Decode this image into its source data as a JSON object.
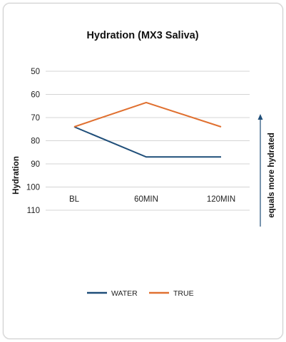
{
  "chart_data": {
    "type": "line",
    "title": "Hydration (MX3 Saliva)",
    "ylabel": "Hydration",
    "xlabel": "",
    "categories": [
      "BL",
      "60MIN",
      "120MIN"
    ],
    "ylim": [
      50,
      110
    ],
    "y_inverted": true,
    "yticks": [
      "50",
      "60",
      "70",
      "80",
      "90",
      "100",
      "110"
    ],
    "grid": "horizontal",
    "legend_position": "bottom",
    "series": [
      {
        "name": "WATER",
        "values": [
          74,
          87,
          87
        ],
        "color": "#1f4e79"
      },
      {
        "name": "TRUE",
        "values": [
          74,
          63.5,
          74
        ],
        "color": "#e07030"
      }
    ],
    "annotation": {
      "text": "equals more hydrated",
      "arrow": "up",
      "color": "#1f4e79"
    }
  }
}
